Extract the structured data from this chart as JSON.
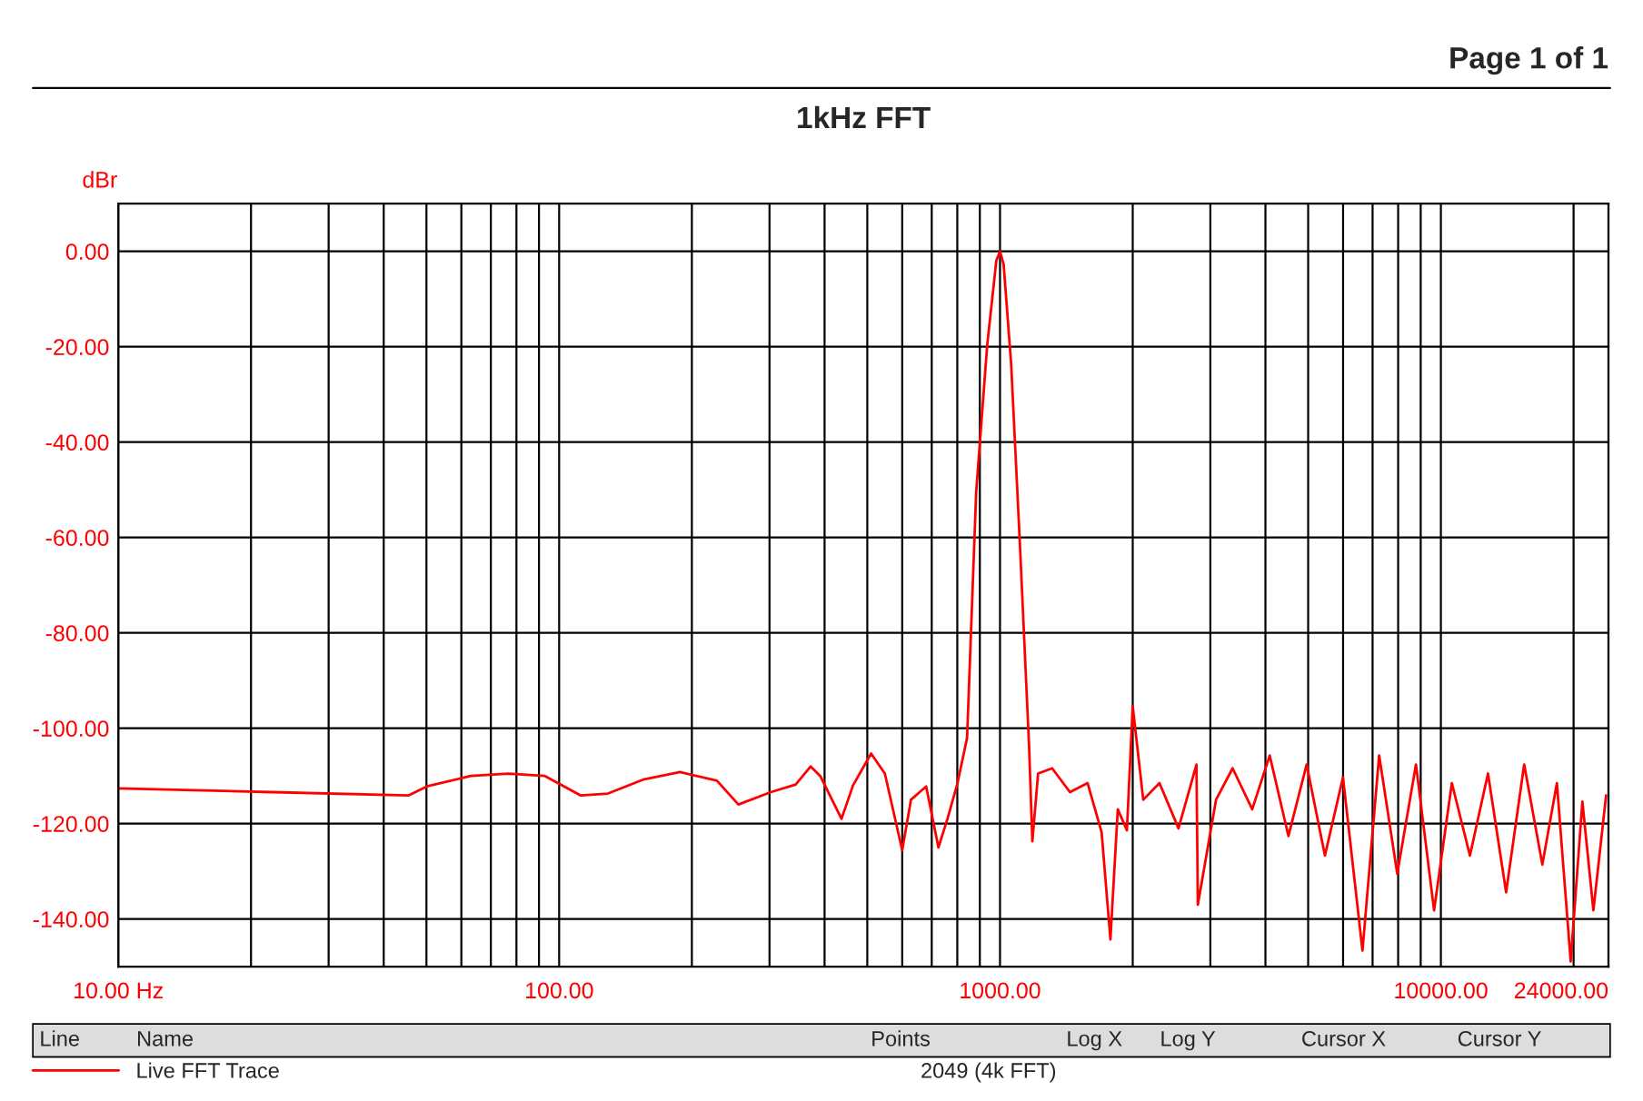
{
  "chart_data": {
    "type": "line",
    "title": "1kHz FFT",
    "ylabel": "dBr",
    "annotations": [
      "Page 1 of 1",
      "Line",
      "Name",
      "Points",
      "Log X",
      "Log Y",
      "Cursor X",
      "Cursor Y",
      "2049 (4k FFT)"
    ],
    "log": "x",
    "grid": true,
    "legend": "bottom left",
    "line_style": "solid",
    "marker": "none",
    "xlim": [
      10,
      24000
    ],
    "ylim": [
      -150,
      10
    ],
    "xticks": [
      {
        "value": 10,
        "label": "10.00 Hz"
      },
      {
        "value": 20,
        "label": null
      },
      {
        "value": 30,
        "label": null
      },
      {
        "value": 40,
        "label": null
      },
      {
        "value": 50,
        "label": null
      },
      {
        "value": 60,
        "label": null
      },
      {
        "value": 70,
        "label": null
      },
      {
        "value": 80,
        "label": null
      },
      {
        "value": 90,
        "label": null
      },
      {
        "value": 100,
        "label": "100.00"
      },
      {
        "value": 200,
        "label": null
      },
      {
        "value": 300,
        "label": null
      },
      {
        "value": 400,
        "label": null
      },
      {
        "value": 500,
        "label": null
      },
      {
        "value": 600,
        "label": null
      },
      {
        "value": 700,
        "label": null
      },
      {
        "value": 800,
        "label": null
      },
      {
        "value": 900,
        "label": null
      },
      {
        "value": 1000,
        "label": "1000.00"
      },
      {
        "value": 2000,
        "label": null
      },
      {
        "value": 3000,
        "label": null
      },
      {
        "value": 4000,
        "label": null
      },
      {
        "value": 5000,
        "label": null
      },
      {
        "value": 6000,
        "label": null
      },
      {
        "value": 7000,
        "label": null
      },
      {
        "value": 8000,
        "label": null
      },
      {
        "value": 9000,
        "label": null
      },
      {
        "value": 10000,
        "label": "10000.00"
      },
      {
        "value": 20000,
        "label": null
      },
      {
        "value": 24000,
        "label": "24000.00"
      }
    ],
    "yticks": [
      {
        "value": 0,
        "label": "0.00"
      },
      {
        "value": -20,
        "label": "-20.00"
      },
      {
        "value": -40,
        "label": "-40.00"
      },
      {
        "value": -60,
        "label": "-60.00"
      },
      {
        "value": -80,
        "label": "-80.00"
      },
      {
        "value": -100,
        "label": "-100.00"
      },
      {
        "value": -120,
        "label": "-120.00"
      },
      {
        "value": -140,
        "label": "-140.00"
      }
    ],
    "series": [
      {
        "name": "Live FFT Trace",
        "color": "#ff0000",
        "x": [
          10,
          22.4,
          45.5,
          50.1,
          63,
          76.7,
          92.8,
          112,
          129,
          156,
          188,
          228,
          255,
          302,
          344,
          372,
          391,
          437,
          464,
          510,
          548,
          600,
          628,
          680,
          725,
          760,
          801,
          842,
          883,
          935,
          981,
          1000,
          1019,
          1060,
          1110,
          1164,
          1184,
          1220,
          1313,
          1441,
          1580,
          1700,
          1780,
          1850,
          1940,
          2000,
          2113,
          2300,
          2540,
          2790,
          2810,
          3090,
          3370,
          3733,
          4090,
          4510,
          4960,
          5457,
          5997,
          6640,
          7244,
          7962,
          8780,
          9650,
          10590,
          11640,
          12790,
          14060,
          15450,
          16990,
          18330,
          19700,
          20940,
          22180,
          23700
        ],
        "values": [
          -112.6,
          -113.4,
          -114.1,
          -112.2,
          -110,
          -109.5,
          -110,
          -114.1,
          -113.7,
          -110.7,
          -109.2,
          -111,
          -116,
          -113.4,
          -111.8,
          -108,
          -110,
          -119,
          -112,
          -105.3,
          -109.5,
          -125.6,
          -115,
          -112.2,
          -125,
          -119,
          -111.5,
          -102,
          -50.4,
          -19.8,
          -1.9,
          0,
          -2.7,
          -23.7,
          -61.8,
          -103.8,
          -123.7,
          -109.5,
          -108.4,
          -113.4,
          -111.5,
          -121.8,
          -144.3,
          -117,
          -121.4,
          -95.4,
          -115,
          -111.5,
          -121,
          -107.6,
          -137,
          -115,
          -108.4,
          -117,
          -105.7,
          -122.6,
          -107.6,
          -126.7,
          -110.3,
          -146.6,
          -105.7,
          -130.5,
          -107.6,
          -138.2,
          -111.5,
          -126.7,
          -109.5,
          -134.4,
          -107.6,
          -128.6,
          -111.5,
          -148.9,
          -115.4,
          -138.2,
          -114.1
        ]
      }
    ]
  }
}
